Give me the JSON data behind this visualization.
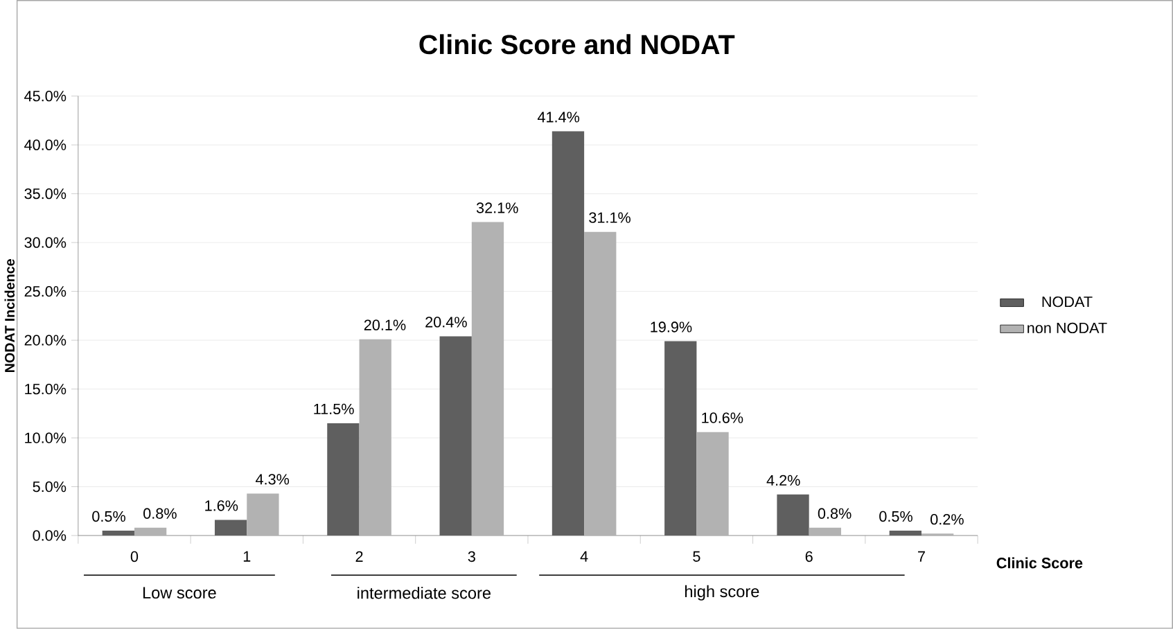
{
  "chart_data": {
    "type": "bar",
    "title": "Clinic Score and NODAT",
    "xlabel": "Clinic Score",
    "ylabel": "NODAT Incidence",
    "categories": [
      "0",
      "1",
      "2",
      "3",
      "4",
      "5",
      "6",
      "7"
    ],
    "series": [
      {
        "name": "NODAT",
        "color": "#5f5f5f",
        "values": [
          0.5,
          1.6,
          11.5,
          20.4,
          41.4,
          19.9,
          4.2,
          0.5
        ],
        "value_labels": [
          "0.5%",
          "1.6%",
          "11.5%",
          "20.4%",
          "41.4%",
          "19.9%",
          "4.2%",
          "0.5%"
        ]
      },
      {
        "name": "non NODAT",
        "color": "#b2b2b2",
        "values": [
          0.8,
          4.3,
          20.1,
          32.1,
          31.1,
          10.6,
          0.8,
          0.2
        ],
        "value_labels": [
          "0.8%",
          "4.3%",
          "20.1%",
          "32.1%",
          "31.1%",
          "10.6%",
          "0.8%",
          "0.2%"
        ]
      }
    ],
    "ylim": [
      0,
      45
    ],
    "yticks": [
      {
        "value": 0,
        "label": "0.0%"
      },
      {
        "value": 5,
        "label": "5.0%"
      },
      {
        "value": 10,
        "label": "10.0%"
      },
      {
        "value": 15,
        "label": "15.0%"
      },
      {
        "value": 20,
        "label": "20.0%"
      },
      {
        "value": 25,
        "label": "25.0%"
      },
      {
        "value": 30,
        "label": "30.0%"
      },
      {
        "value": 35,
        "label": "35.0%"
      },
      {
        "value": 40,
        "label": "40.0%"
      },
      {
        "value": 45,
        "label": "45.0%"
      }
    ],
    "grid": "y",
    "legend": "right",
    "annotations": [
      "Low score",
      "intermediate score",
      "high score"
    ]
  }
}
